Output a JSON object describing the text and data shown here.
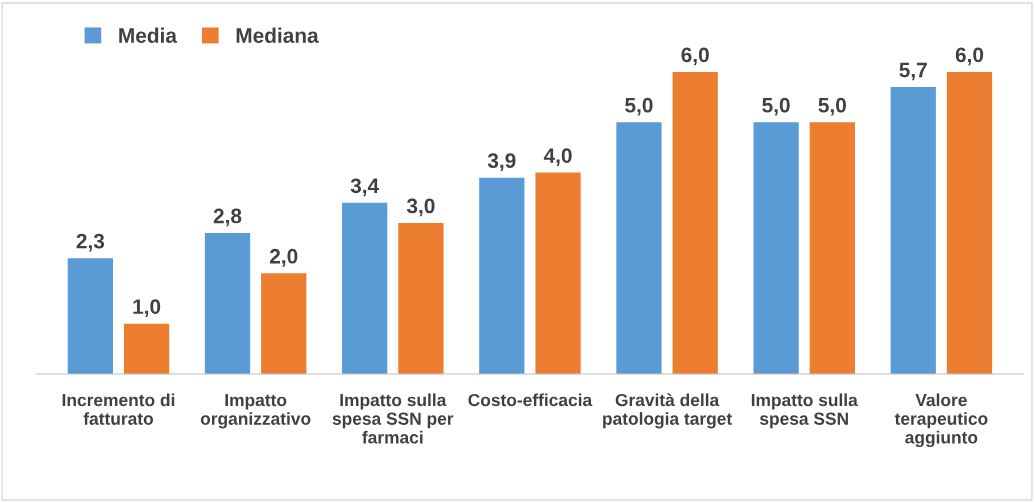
{
  "chart_data": {
    "type": "bar",
    "categories": [
      "Incremento di\nfatturato",
      "Impatto\norganizzativo",
      "Impatto sulla\nspesa SSN per\nfarmaci",
      "Costo-efficacia",
      "Gravità della\npatologia target",
      "Impatto sulla\nspesa SSN",
      "Valore\nterapeutico\naggiunto"
    ],
    "series": [
      {
        "name": "Media",
        "color": "#5b9bd5",
        "values": [
          2.3,
          2.8,
          3.4,
          3.9,
          5.0,
          5.0,
          5.7
        ],
        "value_labels": [
          "2,3",
          "2,8",
          "3,4",
          "3,9",
          "5,0",
          "5,0",
          "5,7"
        ]
      },
      {
        "name": "Mediana",
        "color": "#ed7d31",
        "values": [
          1.0,
          2.0,
          3.0,
          4.0,
          6.0,
          5.0,
          6.0
        ],
        "value_labels": [
          "1,0",
          "2,0",
          "3,0",
          "4,0",
          "6,0",
          "5,0",
          "6,0"
        ]
      }
    ],
    "legend": "top left",
    "grid": false
  }
}
